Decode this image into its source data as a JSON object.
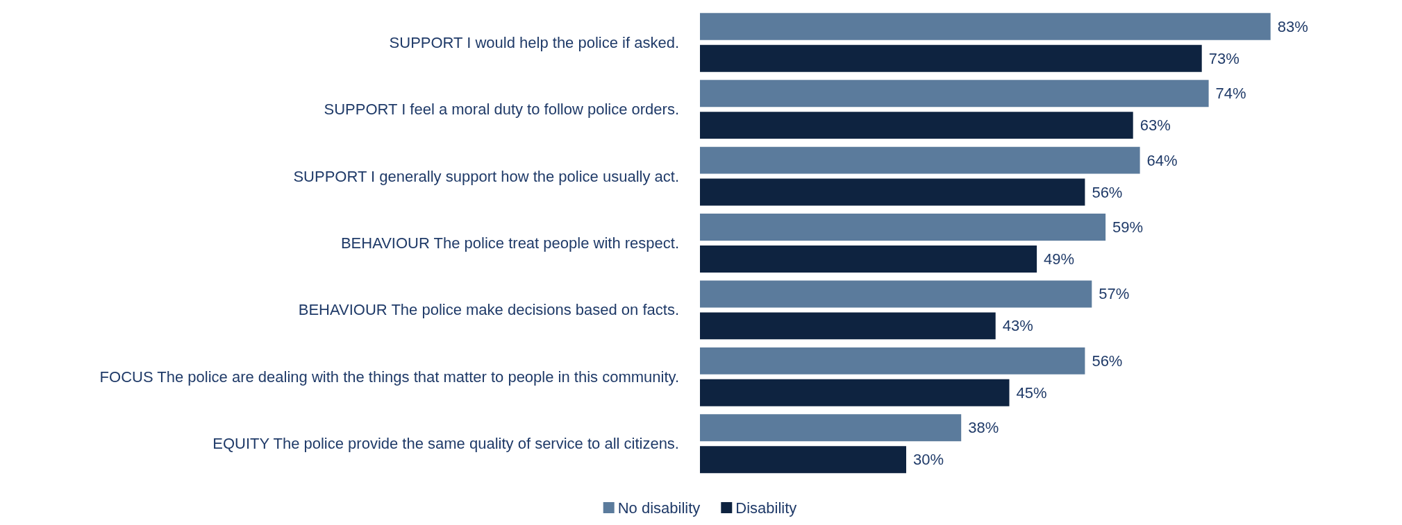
{
  "chart_data": {
    "type": "bar",
    "orientation": "horizontal",
    "categories": [
      "SUPPORT I would help the police if asked.",
      "SUPPORT I feel a moral duty to follow police orders.",
      "SUPPORT I generally support how the police usually act.",
      "BEHAVIOUR The police treat people with respect.",
      "BEHAVIOUR The police make decisions based on facts.",
      "FOCUS The police are dealing with the things that matter to people in this community.",
      "EQUITY The police provide the same quality of service to all citizens."
    ],
    "series": [
      {
        "name": "No disability",
        "color": "#5b7b9c",
        "values": [
          83,
          74,
          64,
          59,
          57,
          56,
          38
        ],
        "value_labels": [
          "83%",
          "74%",
          "64%",
          "59%",
          "57%",
          "56%",
          "38%"
        ]
      },
      {
        "name": "Disability",
        "color": "#0e2340",
        "values": [
          73,
          63,
          56,
          49,
          43,
          45,
          30
        ],
        "value_labels": [
          "73%",
          "63%",
          "56%",
          "49%",
          "43%",
          "45%",
          "30%"
        ]
      }
    ],
    "legend": "bottom"
  }
}
